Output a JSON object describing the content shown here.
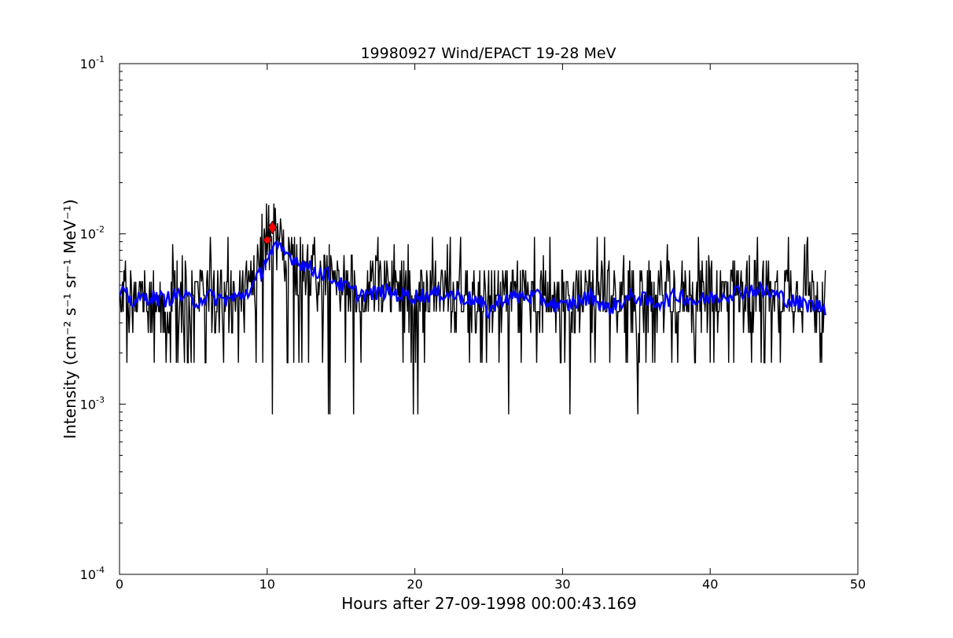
{
  "chart_data": {
    "type": "line",
    "title": "19980927 Wind/EPACT 19-28 MeV",
    "xlabel": "Hours after 27-09-1998 00:00:43.169",
    "ylabel": "Intensity (cm⁻² s⁻¹ sr⁻¹ MeV⁻¹)",
    "xlim": [
      0,
      50
    ],
    "ylim": [
      0.0001,
      0.1
    ],
    "yscale": "log",
    "grid": false,
    "x_ticks": [
      0,
      10,
      20,
      30,
      40,
      50
    ],
    "x_tick_labels": [
      "0",
      "10",
      "20",
      "30",
      "40",
      "50"
    ],
    "y_ticks": [
      0.0001,
      0.001,
      0.01,
      0.1
    ],
    "y_tick_labels": [
      {
        "base": "10",
        "exp": "-4"
      },
      {
        "base": "10",
        "exp": "-3"
      },
      {
        "base": "10",
        "exp": "-2"
      },
      {
        "base": "10",
        "exp": "-1"
      }
    ],
    "series": [
      {
        "role": "raw",
        "color": "#000000",
        "x_range": [
          0.05,
          47.8
        ],
        "x_step": 0.05,
        "baseline_levels": [
          0.00262,
          0.00349,
          0.00436,
          0.00524,
          0.00611,
          0.00698
        ],
        "spike_high_levels": [
          0.0075,
          0.0087,
          0.0096
        ],
        "dip_low_levels": [
          0.00175,
          0.00087
        ],
        "profile": [
          [
            0,
            0.0043
          ],
          [
            8.5,
            0.0043
          ],
          [
            9.8,
            0.0075
          ],
          [
            10.5,
            0.0088
          ],
          [
            11.5,
            0.0072
          ],
          [
            13,
            0.0058
          ],
          [
            15,
            0.0048
          ],
          [
            20,
            0.0044
          ],
          [
            30,
            0.0042
          ],
          [
            40,
            0.0044
          ],
          [
            45,
            0.0046
          ],
          [
            47.8,
            0.0043
          ]
        ]
      },
      {
        "role": "smoothed",
        "color": "#0000ff",
        "profile": [
          [
            0,
            0.0045
          ],
          [
            1,
            0.004
          ],
          [
            2,
            0.0043
          ],
          [
            3,
            0.0041
          ],
          [
            4,
            0.0044
          ],
          [
            5,
            0.004
          ],
          [
            6,
            0.0043
          ],
          [
            7,
            0.0041
          ],
          [
            8,
            0.0042
          ],
          [
            9,
            0.0048
          ],
          [
            9.6,
            0.006
          ],
          [
            10,
            0.0074
          ],
          [
            10.5,
            0.0082
          ],
          [
            11,
            0.0079
          ],
          [
            11.5,
            0.0075
          ],
          [
            12,
            0.007
          ],
          [
            13,
            0.0062
          ],
          [
            14,
            0.0058
          ],
          [
            15,
            0.005
          ],
          [
            16,
            0.0045
          ],
          [
            17,
            0.0044
          ],
          [
            18,
            0.0046
          ],
          [
            19,
            0.0044
          ],
          [
            20,
            0.0043
          ],
          [
            22,
            0.0045
          ],
          [
            24,
            0.0041
          ],
          [
            25,
            0.0035
          ],
          [
            26,
            0.0042
          ],
          [
            28,
            0.0043
          ],
          [
            29,
            0.004
          ],
          [
            30,
            0.0037
          ],
          [
            31,
            0.004
          ],
          [
            32,
            0.0043
          ],
          [
            33,
            0.0036
          ],
          [
            34,
            0.004
          ],
          [
            35,
            0.0043
          ],
          [
            36,
            0.0039
          ],
          [
            37,
            0.0041
          ],
          [
            38,
            0.0044
          ],
          [
            39,
            0.004
          ],
          [
            40,
            0.0042
          ],
          [
            41,
            0.0044
          ],
          [
            42,
            0.0046
          ],
          [
            43,
            0.0047
          ],
          [
            44,
            0.0045
          ],
          [
            45,
            0.0042
          ],
          [
            46,
            0.0039
          ],
          [
            47,
            0.0038
          ],
          [
            47.8,
            0.0037
          ]
        ]
      }
    ],
    "markers": [
      {
        "shape": "circle",
        "color": "#ff0000",
        "x": 10.0,
        "y": 0.0092
      },
      {
        "shape": "diamond",
        "color": "#ff0000",
        "x": 10.35,
        "y": 0.0109
      }
    ]
  }
}
